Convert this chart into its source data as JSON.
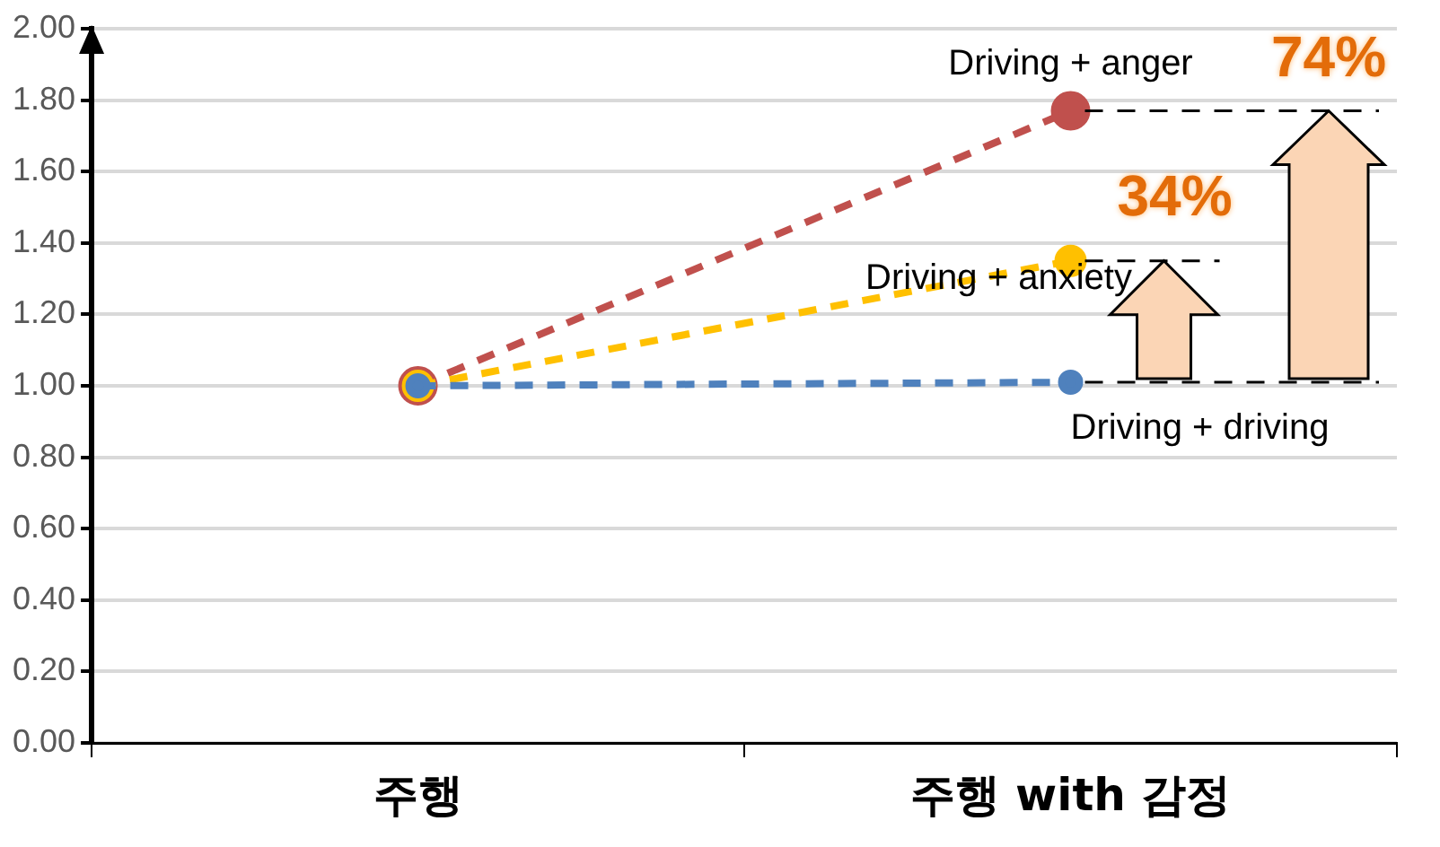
{
  "chart_data": {
    "type": "line",
    "categories": [
      "주행",
      "주행 with 감정"
    ],
    "series": [
      {
        "name": "Driving + anger",
        "color": "#c0504d",
        "values": [
          1.0,
          1.77
        ]
      },
      {
        "name": "Driving + anxiety",
        "color": "#ffc000",
        "values": [
          1.0,
          1.35
        ]
      },
      {
        "name": "Driving + driving",
        "color": "#4f81bd",
        "values": [
          1.0,
          1.01
        ]
      }
    ],
    "ylim": [
      0,
      2
    ],
    "yticks": [
      {
        "value": 0,
        "label": "0.00"
      },
      {
        "value": 0.2,
        "label": "0.20"
      },
      {
        "value": 0.4,
        "label": "0.40"
      },
      {
        "value": 0.6,
        "label": "0.60"
      },
      {
        "value": 0.8,
        "label": "0.80"
      },
      {
        "value": 1.0,
        "label": "1.00"
      },
      {
        "value": 1.2,
        "label": "1.20"
      },
      {
        "value": 1.4,
        "label": "1.40"
      },
      {
        "value": 1.6,
        "label": "1.60"
      },
      {
        "value": 1.8,
        "label": "1.80"
      },
      {
        "value": 2.0,
        "label": "2.00"
      }
    ],
    "ref_lines": [
      {
        "axis": "y",
        "value": 1.77,
        "color": "#000000",
        "line_style": "dashed"
      },
      {
        "axis": "y",
        "value": 1.35,
        "color": "#000000",
        "line_style": "dashed"
      },
      {
        "axis": "y",
        "value": 1.01,
        "color": "#000000",
        "line_style": "dashed"
      }
    ],
    "annotations": [
      "74%",
      "34%"
    ],
    "grid": "y",
    "legend": false,
    "marker": "circle",
    "line_style": "dashed"
  }
}
